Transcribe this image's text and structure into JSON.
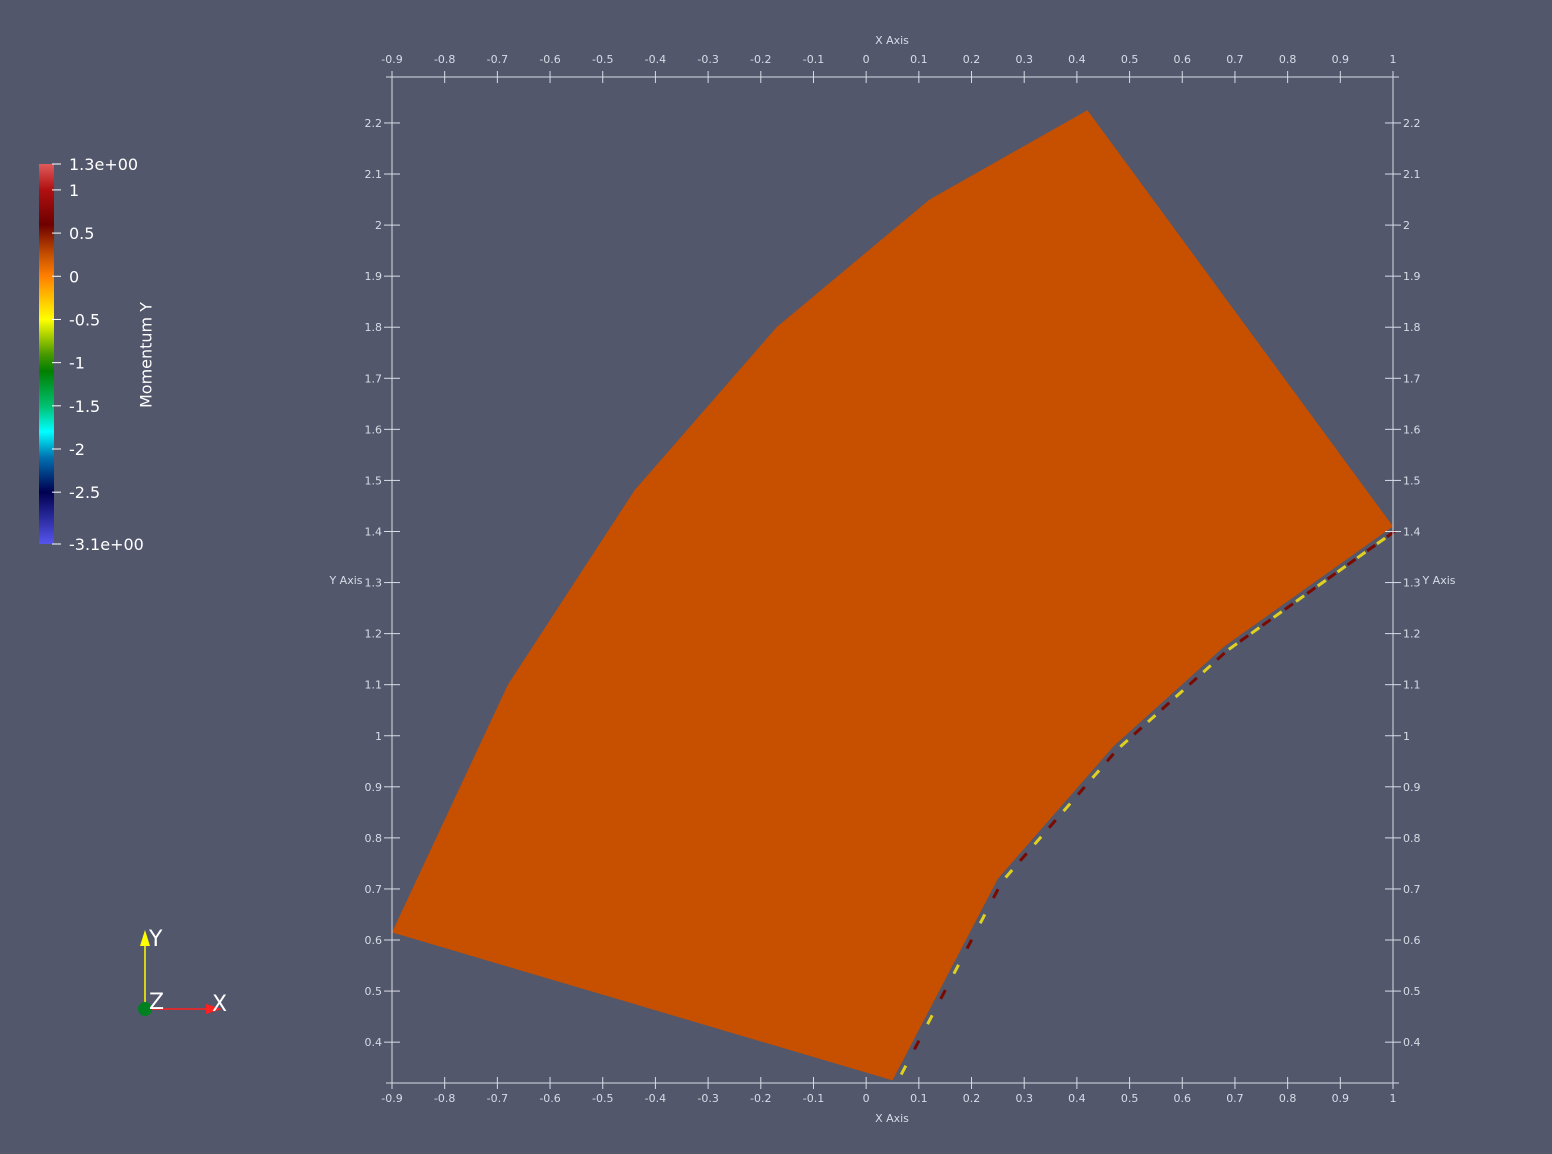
{
  "scene": {
    "background": "#52576c",
    "surface_color": "#c64f00"
  },
  "axes_grid": {
    "x_title": "X Axis",
    "y_title": "Y Axis",
    "x_ticks": [
      "-0.9",
      "-0.8",
      "-0.7",
      "-0.6",
      "-0.5",
      "-0.4",
      "-0.3",
      "-0.2",
      "-0.1",
      "0",
      "0.1",
      "0.2",
      "0.3",
      "0.4",
      "0.5",
      "0.6",
      "0.7",
      "0.8",
      "0.9",
      "1"
    ],
    "y_ticks": [
      "0.4",
      "0.5",
      "0.6",
      "0.7",
      "0.8",
      "0.9",
      "1",
      "1.1",
      "1.2",
      "1.3",
      "1.4",
      "1.5",
      "1.6",
      "1.7",
      "1.8",
      "1.9",
      "2",
      "2.1",
      "2.2"
    ],
    "x_range": [
      -0.9,
      1.0
    ],
    "y_range": [
      0.32,
      2.29
    ],
    "color": "#d8dce6"
  },
  "mesh_polygon": {
    "x": [
      -0.9,
      -0.68,
      -0.44,
      -0.17,
      0.12,
      0.42,
      1.0,
      0.85,
      0.68,
      0.47,
      0.25,
      0.05,
      -0.9
    ],
    "y": [
      0.615,
      1.1,
      1.48,
      1.8,
      2.05,
      2.225,
      1.41,
      1.3,
      1.175,
      0.98,
      0.72,
      0.325,
      0.615
    ]
  },
  "colorbar": {
    "title": "Momentum Y",
    "range": [
      -3.1,
      1.3
    ],
    "max_label": "1.3e+00",
    "min_label": "-3.1e+00",
    "tick_values": [
      1,
      0.5,
      0,
      -0.5,
      -1,
      -1.5,
      -2,
      -2.5
    ],
    "tick_labels": [
      "1",
      "0.5",
      "0",
      "-0.5",
      "-1",
      "-1.5",
      "-2",
      "-2.5"
    ],
    "stops": [
      {
        "v": 1.3,
        "c": "#e05a5a"
      },
      {
        "v": 1.0,
        "c": "#b01010"
      },
      {
        "v": 0.6,
        "c": "#6e0000"
      },
      {
        "v": 0.25,
        "c": "#c64f00"
      },
      {
        "v": 0.0,
        "c": "#ff8000"
      },
      {
        "v": -0.5,
        "c": "#ffff00"
      },
      {
        "v": -0.9,
        "c": "#4a9a00"
      },
      {
        "v": -1.1,
        "c": "#008000"
      },
      {
        "v": -1.5,
        "c": "#00c070"
      },
      {
        "v": -1.8,
        "c": "#00ffff"
      },
      {
        "v": -2.1,
        "c": "#0070b0"
      },
      {
        "v": -2.5,
        "c": "#000050"
      },
      {
        "v": -3.1,
        "c": "#5555ee"
      }
    ]
  },
  "orientation": {
    "y_label": "Y",
    "x_label": "X",
    "z_label": "Z",
    "y_color": "#ffff00",
    "x_color": "#ff2020",
    "z_color": "#008020"
  }
}
